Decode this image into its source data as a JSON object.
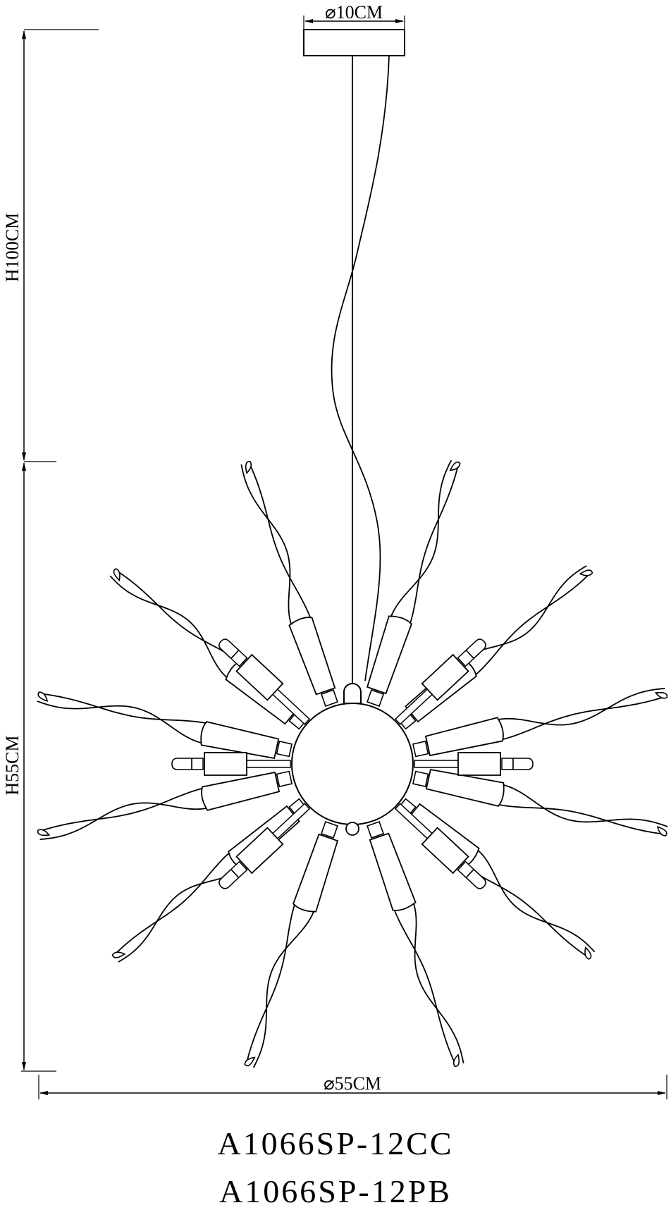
{
  "dimensions": {
    "canopy_diameter": "⌀10CM",
    "drop_height": "H100CM",
    "fixture_height": "H55CM",
    "fixture_diameter": "⌀55CM"
  },
  "models": [
    "A1066SP-12CC",
    "A1066SP-12PB"
  ],
  "drawing": {
    "line_color": "#000000",
    "background": "#ffffff",
    "leaf_count": 12,
    "bulb_count": 6
  }
}
